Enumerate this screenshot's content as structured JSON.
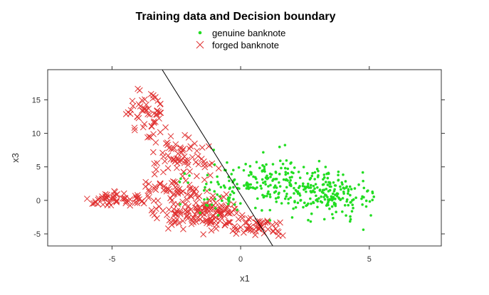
{
  "chart_data": {
    "type": "scatter",
    "title": "Training data and Decision boundary",
    "xlabel": "x1",
    "ylabel": "x3",
    "xlim": [
      -7.5,
      7.8
    ],
    "ylim": [
      -6.8,
      19.5
    ],
    "xticks": [
      -5,
      0,
      5
    ],
    "yticks": [
      -5,
      0,
      5,
      10,
      15
    ],
    "grid": false,
    "legend_position": "top-center",
    "colors": {
      "genuine": "#22dd22",
      "forged": "#e03030",
      "boundary": "#000000",
      "frame": "#333333"
    },
    "series": [
      {
        "name": "genuine banknote",
        "marker": "dot",
        "clusters": [
          {
            "cx": 3.4,
            "cy": 1.0,
            "sx": 1.3,
            "sy": 2.4,
            "n": 210
          },
          {
            "cx": 1.3,
            "cy": 3.0,
            "sx": 1.0,
            "sy": 2.8,
            "n": 120
          },
          {
            "cx": -0.6,
            "cy": 1.5,
            "sx": 1.1,
            "sy": 2.8,
            "n": 70
          }
        ]
      },
      {
        "name": "forged banknote",
        "marker": "x",
        "clusters": [
          {
            "cx": -1.5,
            "cy": -1.8,
            "sx": 1.3,
            "sy": 1.8,
            "n": 150
          },
          {
            "cx": -4.8,
            "cy": 0.1,
            "sx": 1.1,
            "sy": 0.7,
            "n": 60
          },
          {
            "cx": -3.7,
            "cy": 13.0,
            "sx": 0.6,
            "sy": 2.7,
            "n": 55
          },
          {
            "cx": -2.3,
            "cy": 6.5,
            "sx": 0.8,
            "sy": 1.9,
            "n": 70
          },
          {
            "cx": 0.6,
            "cy": -3.8,
            "sx": 0.8,
            "sy": 0.9,
            "n": 50
          },
          {
            "cx": -2.6,
            "cy": 1.8,
            "sx": 0.9,
            "sy": 1.0,
            "n": 40
          }
        ]
      }
    ],
    "decision_boundary": {
      "x": [
        -3.05,
        1.25
      ],
      "y": [
        19.5,
        -6.8
      ]
    }
  }
}
